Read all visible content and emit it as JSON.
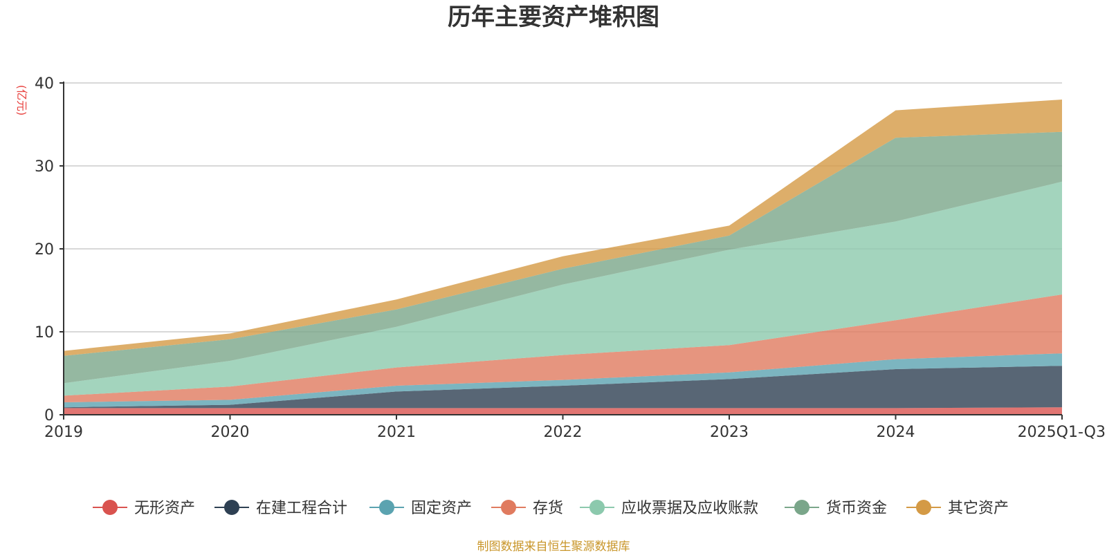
{
  "chart_data": {
    "type": "area",
    "stacked": true,
    "title": "历年主要资产堆积图",
    "ylabel": "(亿元)",
    "xlabel": "",
    "ylim": [
      0,
      40
    ],
    "yticks": [
      0,
      10,
      20,
      30,
      40
    ],
    "grid": true,
    "legend_position": "bottom",
    "categories": [
      "2019",
      "2020",
      "2021",
      "2022",
      "2023",
      "2024",
      "2025Q1-Q3"
    ],
    "series": [
      {
        "name": "无形资产",
        "color": "#d9534f",
        "values": [
          0.8,
          0.8,
          0.8,
          0.8,
          0.8,
          0.8,
          0.9
        ]
      },
      {
        "name": "在建工程合计",
        "color": "#2e4053",
        "values": [
          0.1,
          0.4,
          2.0,
          2.7,
          3.5,
          4.7,
          5.0
        ]
      },
      {
        "name": "固定资产",
        "color": "#5ba3b0",
        "values": [
          0.6,
          0.6,
          0.7,
          0.7,
          0.8,
          1.2,
          1.5
        ]
      },
      {
        "name": "存货",
        "color": "#e07b5f",
        "values": [
          0.8,
          1.6,
          2.2,
          3.0,
          3.3,
          4.7,
          7.1
        ]
      },
      {
        "name": "应收票据及应收账款",
        "color": "#8cc9ad",
        "values": [
          1.5,
          3.1,
          4.9,
          8.5,
          11.5,
          11.9,
          13.6
        ]
      },
      {
        "name": "货币资金",
        "color": "#7aa68a",
        "values": [
          3.3,
          2.6,
          2.1,
          1.9,
          1.7,
          10.1,
          6.0
        ]
      },
      {
        "name": "其它资产",
        "color": "#d49a45",
        "values": [
          0.6,
          0.7,
          1.2,
          1.5,
          1.2,
          3.3,
          3.9
        ]
      }
    ]
  },
  "legend_colors": [
    "#d9534f",
    "#2e4053",
    "#5ba3b0",
    "#e07b5f",
    "#8cc9ad",
    "#7aa68a",
    "#d49a45"
  ],
  "source": "制图数据来自恒生聚源数据库"
}
